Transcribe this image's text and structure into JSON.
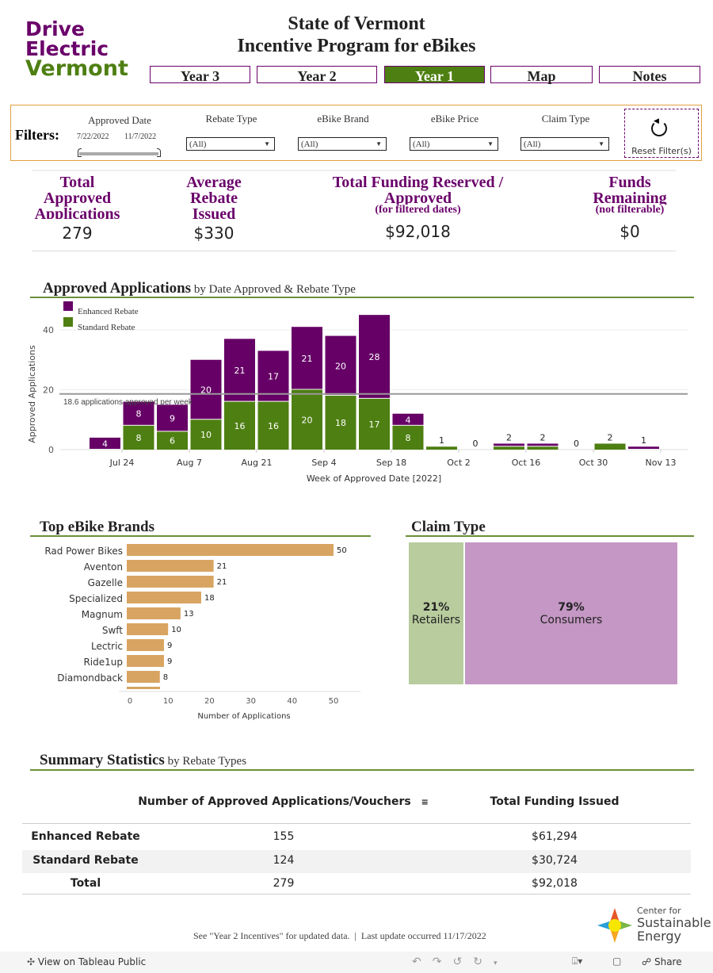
{
  "logo": {
    "line1": "Drive",
    "line2": "Electric",
    "line3": "Vermont"
  },
  "header": {
    "title_line1": "State of Vermont",
    "title_line2": "Incentive Program for eBikes"
  },
  "nav": [
    {
      "label": "Year 3",
      "active": false
    },
    {
      "label": "Year 2",
      "active": false
    },
    {
      "label": "Year 1",
      "active": true
    },
    {
      "label": "Map",
      "active": false
    },
    {
      "label": "Notes",
      "active": false
    }
  ],
  "filters": {
    "label": "Filters:",
    "approved_date": {
      "label": "Approved Date",
      "start": "7/22/2022",
      "end": "11/7/2022"
    },
    "dropdowns": [
      {
        "label": "Rebate Type",
        "value": "(All)"
      },
      {
        "label": "eBike Brand",
        "value": "(All)"
      },
      {
        "label": "eBike Price",
        "value": "(All)"
      },
      {
        "label": "Claim Type",
        "value": "(All)"
      }
    ],
    "reset": "Reset Filter(s)"
  },
  "kpis": [
    {
      "title": "Total Approved Applications",
      "sub": "",
      "value": "279"
    },
    {
      "title": "Average Rebate Issued",
      "sub": "",
      "value": "$330"
    },
    {
      "title": "Total Funding Reserved / Approved",
      "sub": "(for filtered dates)",
      "value": "$92,018"
    },
    {
      "title": "Funds Remaining",
      "sub": "(not filterable)",
      "value": "$0"
    }
  ],
  "colors": {
    "enhanced": "#660066",
    "standard": "#4e7f12",
    "brand_bar": "#d8a462",
    "retailers": "#b8cc9e",
    "consumers": "#c497c4",
    "accent": "#6a8f3a"
  },
  "chart_data": [
    {
      "type": "bar",
      "stacked": true,
      "title": "Approved Applications",
      "subtitle": "by Date Approved & Rebate Type",
      "xlabel": "Week of Approved Date [2022]",
      "ylabel": "Approved Applications",
      "ylim": [
        0,
        47
      ],
      "yticks": [
        0,
        20,
        40
      ],
      "categories": [
        "Jul 17",
        "Jul 24",
        "Jul 31",
        "Aug 7",
        "Aug 14",
        "Aug 21",
        "Aug 28",
        "Sep 4",
        "Sep 11",
        "Sep 18",
        "Sep 25",
        "Oct 2",
        "Oct 9",
        "Oct 16",
        "Oct 23",
        "Oct 30",
        "Nov 6"
      ],
      "xticks": [
        "Jul 24",
        "Aug 7",
        "Aug 21",
        "Sep 4",
        "Sep 18",
        "Oct 2",
        "Oct 16",
        "Oct 30",
        "Nov 13"
      ],
      "series": [
        {
          "name": "Standard Rebate",
          "values": [
            0,
            8,
            6,
            10,
            16,
            16,
            20,
            18,
            17,
            8,
            1,
            0,
            1,
            1,
            0,
            2,
            0
          ]
        },
        {
          "name": "Enhanced Rebate",
          "values": [
            4,
            8,
            9,
            20,
            21,
            17,
            21,
            20,
            28,
            4,
            0,
            0,
            1,
            1,
            0,
            0,
            1
          ]
        }
      ],
      "reference_line": {
        "value": 18.6,
        "label": "18.6 applications approved per week"
      },
      "legend": "top-left"
    },
    {
      "type": "bar",
      "orientation": "horizontal",
      "title": "Top eBike Brands",
      "xlabel": "Number of Applications",
      "xlim": [
        0,
        55
      ],
      "xticks": [
        0,
        10,
        20,
        30,
        40,
        50
      ],
      "categories": [
        "Rad Power Bikes",
        "Aventon",
        "Gazelle",
        "Specialized",
        "Magnum",
        "Swft",
        "Lectric",
        "Ride1up",
        "Diamondback"
      ],
      "values": [
        50,
        21,
        21,
        18,
        13,
        10,
        9,
        9,
        8
      ]
    },
    {
      "type": "treemap",
      "title": "Claim Type",
      "categories": [
        "Retailers",
        "Consumers"
      ],
      "values": [
        21,
        79
      ],
      "labels": [
        "21%",
        "79%"
      ]
    }
  ],
  "summary": {
    "title": "Summary Statistics",
    "subtitle": "by Rebate Types",
    "columns": [
      "Number of Approved Applications/Vouchers",
      "Total Funding Issued"
    ],
    "rows": [
      {
        "label": "Enhanced Rebate",
        "count": "155",
        "funding": "$61,294"
      },
      {
        "label": "Standard Rebate",
        "count": "124",
        "funding": "$30,724"
      },
      {
        "label": "Total",
        "count": "279",
        "funding": "$92,018"
      }
    ]
  },
  "footer": {
    "note": "See \"Year 2 Incentives\" for updated data.  |  Last update occurred 11/17/2022",
    "cse": {
      "l1": "Center for",
      "l2": "Sustainable",
      "l3": "Energy"
    }
  },
  "toolbar": {
    "view_on": "View on Tableau Public",
    "share": "Share"
  }
}
